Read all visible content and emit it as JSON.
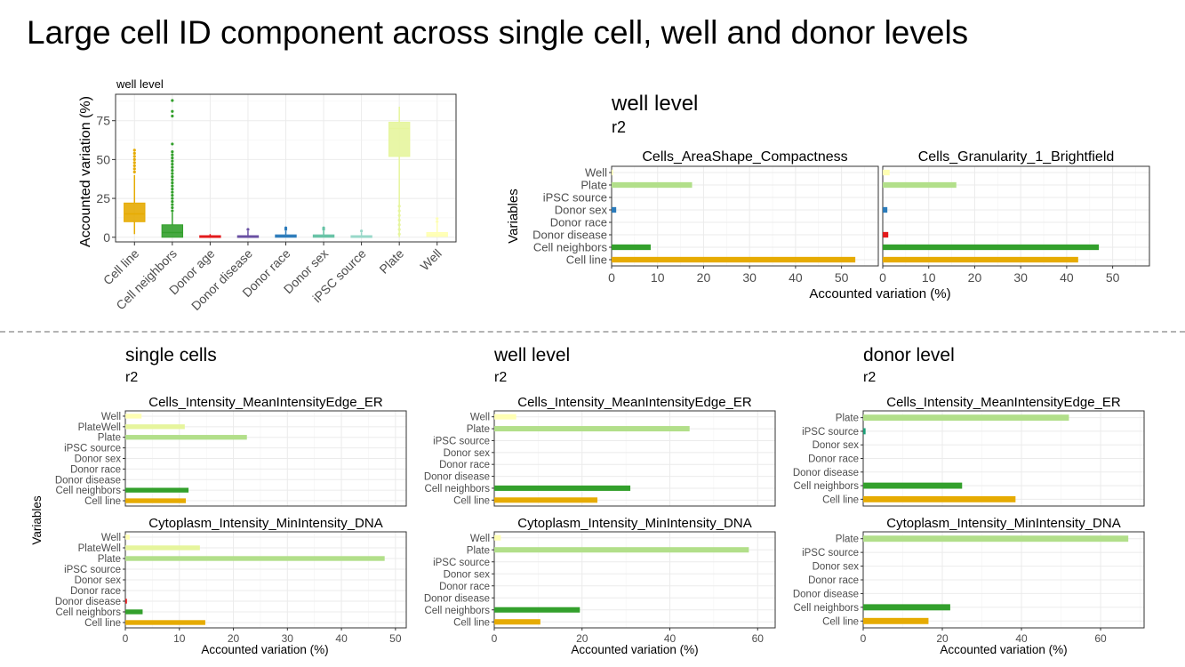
{
  "title": "Large cell ID component across single cell, well and donor levels",
  "colors": {
    "Cell line": "#e6ab02",
    "Cell neighbors": "#33a02c",
    "Donor age": "#e31a1c",
    "Donor disease": "#e31a1c",
    "Donor race": "#6a51a3",
    "Donor sex": "#2b7bba",
    "iPSC source": "#1b9e77",
    "Plate": "#b2df8a",
    "PlateWell": "#e6f59d",
    "Well": "#ffffb3"
  },
  "chart_data": [
    {
      "type": "boxplot",
      "title": "well level",
      "ylabel": "Accounted variation (%)",
      "xlabel": "",
      "ylim": [
        -3,
        92
      ],
      "yticks": [
        0,
        25,
        50,
        75
      ],
      "grid": true,
      "categories": [
        "Cell line",
        "Cell neighbors",
        "Donor age",
        "Donor disease",
        "Donor race",
        "Donor sex",
        "iPSC source",
        "Plate",
        "Well"
      ],
      "boxes": [
        {
          "name": "Cell line",
          "color": "#e6ab02",
          "min": 2,
          "q1": 10,
          "median": 15,
          "q3": 22,
          "max": 40,
          "outliers": [
            42,
            44,
            46,
            48,
            50,
            52,
            54,
            56
          ]
        },
        {
          "name": "Cell neighbors",
          "color": "#33a02c",
          "min": 0,
          "q1": 0,
          "median": 3,
          "q3": 8,
          "max": 16,
          "outliers": [
            17,
            19,
            21,
            23,
            25,
            27,
            29,
            31,
            33,
            35,
            37,
            39,
            41,
            43,
            45,
            47,
            49,
            51,
            53,
            55,
            60,
            78,
            81,
            88
          ]
        },
        {
          "name": "Donor age",
          "color": "#e31a1c",
          "min": 0,
          "q1": 0,
          "median": 0.5,
          "q3": 1,
          "max": 2,
          "outliers": []
        },
        {
          "name": "Donor disease",
          "color": "#6a51a3",
          "min": 0,
          "q1": 0,
          "median": 0.5,
          "q3": 1,
          "max": 4,
          "outliers": [
            5
          ]
        },
        {
          "name": "Donor race",
          "color": "#2b7bba",
          "min": 0,
          "q1": 0,
          "median": 0.5,
          "q3": 1.5,
          "max": 4,
          "outliers": [
            5,
            6
          ]
        },
        {
          "name": "Donor sex",
          "color": "#66c2a5",
          "min": 0,
          "q1": 0,
          "median": 0.5,
          "q3": 1.5,
          "max": 4,
          "outliers": [
            5,
            6
          ]
        },
        {
          "name": "iPSC source",
          "color": "#99d8c9",
          "min": 0,
          "q1": 0,
          "median": 0.5,
          "q3": 1,
          "max": 3,
          "outliers": [
            4
          ]
        },
        {
          "name": "Plate",
          "color": "#e6f59d",
          "min": 0,
          "q1": 52,
          "median": 70,
          "q3": 74,
          "max": 84,
          "outliers": [
            2,
            5,
            8,
            11,
            14,
            17,
            20
          ]
        },
        {
          "name": "Well",
          "color": "#ffffb3",
          "min": 0,
          "q1": 0.5,
          "median": 1.5,
          "q3": 3,
          "max": 9,
          "outliers": [
            10,
            12
          ]
        }
      ]
    },
    {
      "type": "bar",
      "orientation": "horizontal",
      "title": "well level",
      "subtitle": "r2",
      "xlabel": "Accounted variation (%)",
      "ylabel": "Variables",
      "xlim": [
        0,
        58
      ],
      "xticks": [
        0,
        10,
        20,
        30,
        40,
        50
      ],
      "categories": [
        "Well",
        "Plate",
        "iPSC source",
        "Donor sex",
        "Donor race",
        "Donor disease",
        "Cell neighbors",
        "Cell line"
      ],
      "facets": [
        {
          "title": "Cells_AreaShape_Compactness",
          "values": [
            0.3,
            17.5,
            0,
            1.0,
            0,
            0,
            8.5,
            53
          ]
        },
        {
          "title": "Cells_Granularity_1_Brightfield",
          "values": [
            1.5,
            16,
            0,
            1.0,
            0,
            1.2,
            47,
            42.5
          ]
        }
      ]
    },
    {
      "type": "bar",
      "orientation": "horizontal",
      "title": "single cells",
      "subtitle": "r2",
      "xlabel": "Accounted variation (%)",
      "ylabel": "Variables",
      "xlim": [
        0,
        52
      ],
      "xticks": [
        0,
        10,
        20,
        30,
        40,
        50
      ],
      "categories": [
        "Well",
        "PlateWell",
        "Plate",
        "iPSC source",
        "Donor sex",
        "Donor race",
        "Donor disease",
        "Cell neighbors",
        "Cell line"
      ],
      "facets": [
        {
          "title": "Cells_Intensity_MeanIntensityEdge_ER",
          "values": [
            3,
            11,
            22.5,
            0,
            0,
            0,
            0,
            11.7,
            11.2
          ]
        },
        {
          "title": "Cytoplasm_Intensity_MinIntensity_DNA",
          "values": [
            0.8,
            13.8,
            48,
            0,
            0,
            0,
            0.3,
            3.2,
            14.8
          ]
        }
      ]
    },
    {
      "type": "bar",
      "orientation": "horizontal",
      "title": "well level",
      "subtitle": "r2",
      "xlabel": "Accounted variation (%)",
      "ylabel": "",
      "xlim": [
        0,
        64
      ],
      "xticks": [
        0,
        20,
        40,
        60
      ],
      "categories": [
        "Well",
        "Plate",
        "iPSC source",
        "Donor sex",
        "Donor race",
        "Donor disease",
        "Cell neighbors",
        "Cell line"
      ],
      "facets": [
        {
          "title": "Cells_Intensity_MeanIntensityEdge_ER",
          "values": [
            5,
            44.5,
            0,
            0,
            0,
            0,
            31,
            23.5
          ]
        },
        {
          "title": "Cytoplasm_Intensity_MinIntensity_DNA",
          "values": [
            1.5,
            58,
            0,
            0,
            0,
            0,
            19.5,
            10.5
          ]
        }
      ]
    },
    {
      "type": "bar",
      "orientation": "horizontal",
      "title": "donor level",
      "subtitle": "r2",
      "xlabel": "Accounted variation (%)",
      "ylabel": "",
      "xlim": [
        0,
        71
      ],
      "xticks": [
        0,
        20,
        40,
        60
      ],
      "categories": [
        "Plate",
        "iPSC source",
        "Donor sex",
        "Donor race",
        "Donor disease",
        "Cell neighbors",
        "Cell line"
      ],
      "facets": [
        {
          "title": "Cells_Intensity_MeanIntensityEdge_ER",
          "values": [
            52,
            0.6,
            0,
            0,
            0,
            25,
            38.5
          ]
        },
        {
          "title": "Cytoplasm_Intensity_MinIntensity_DNA",
          "values": [
            67,
            0,
            0,
            0,
            0,
            22,
            16.5
          ]
        }
      ]
    }
  ]
}
